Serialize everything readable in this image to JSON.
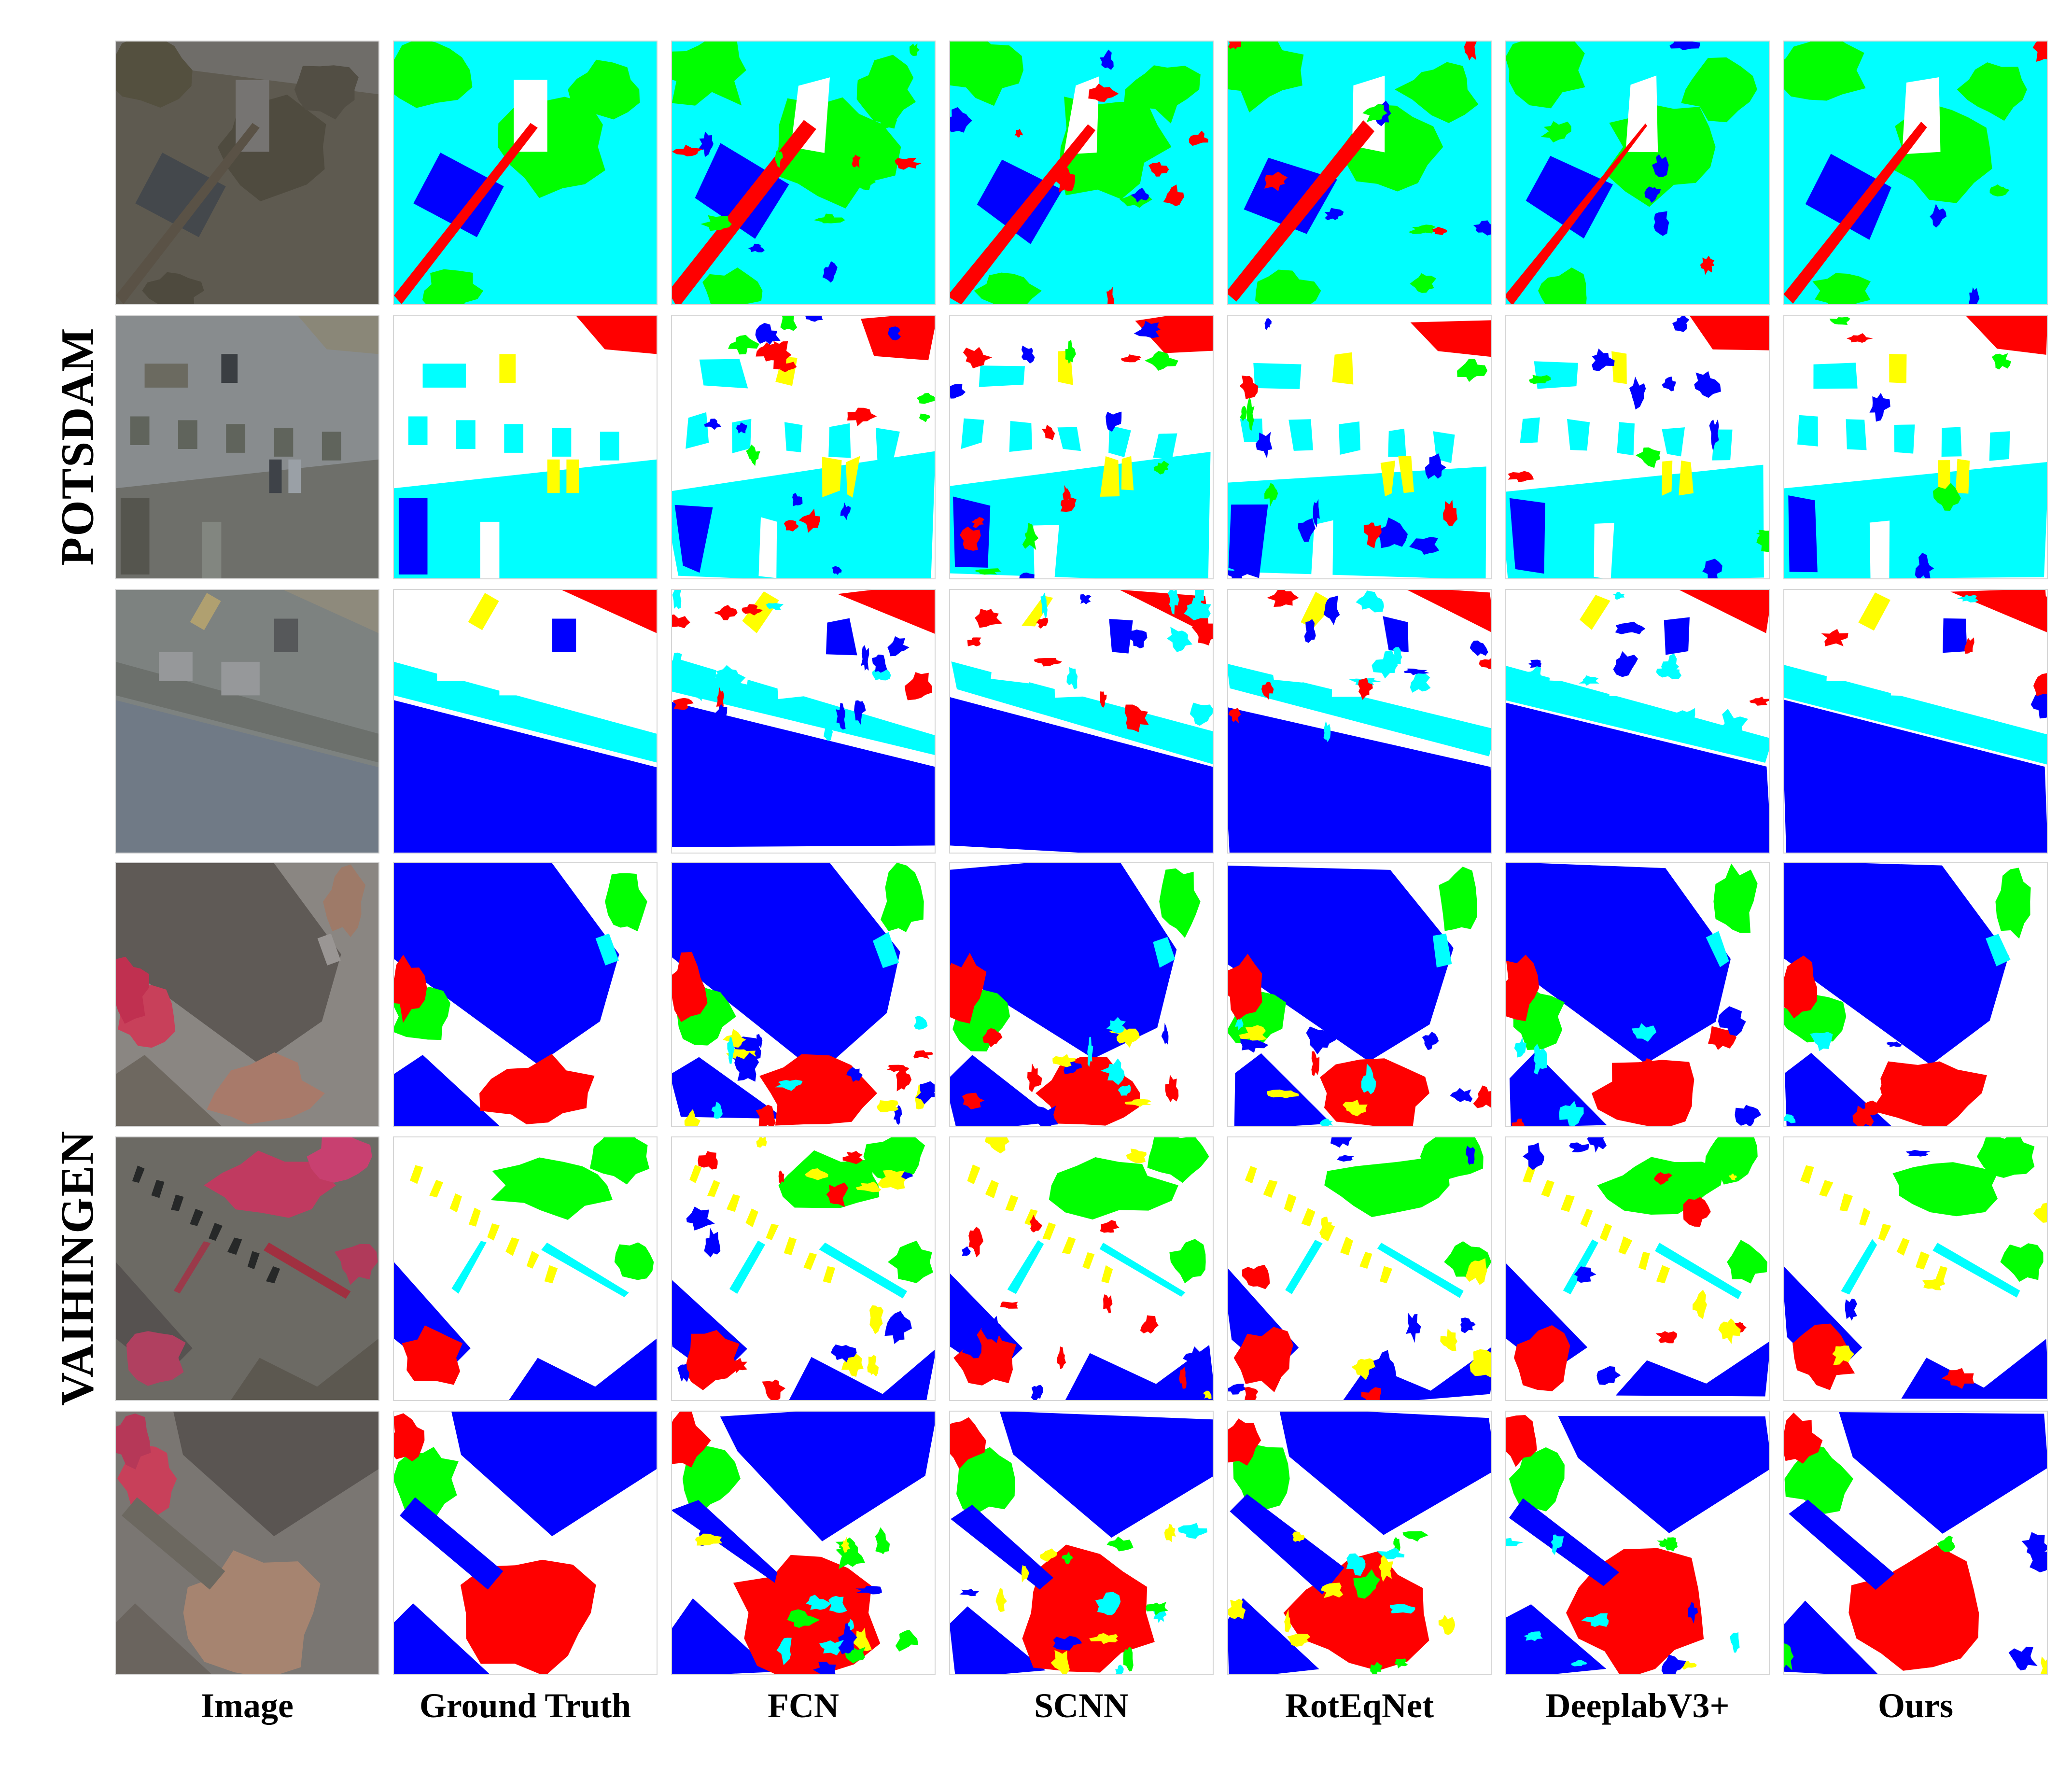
{
  "groups": [
    {
      "label": "POTSDAM"
    },
    {
      "label": "VAIHINGEN"
    }
  ],
  "columns": [
    "Image",
    "Ground Truth",
    "FCN",
    "SCNN",
    "RotEqNet",
    "DeeplabV3+",
    "Ours"
  ],
  "palette": {
    "impervious_surface": "#ffffff",
    "building": "#0000ff",
    "low_vegetation": "#00ffff",
    "tree": "#00ff00",
    "car": "#ffff00",
    "clutter": "#ff0000"
  }
}
